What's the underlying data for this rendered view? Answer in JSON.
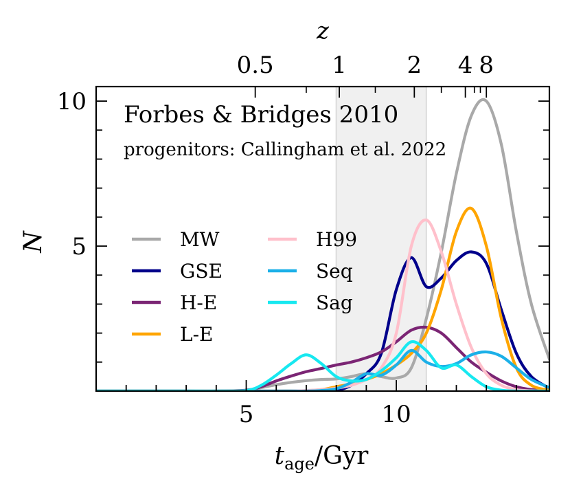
{
  "chart_data": {
    "type": "line",
    "title": "Forbes & Bridges 2010",
    "subtitle": "progenitors: Callingham et al. 2022",
    "xlabel": "t",
    "xlabel_sub": "age",
    "xlabel_unit": "/Gyr",
    "ylabel": "N",
    "top_axis_label": "z",
    "xlim": [
      0,
      15.1
    ],
    "ylim": [
      0,
      10.5
    ],
    "x_ticks": [
      5,
      10
    ],
    "x_tick_labels": [
      "5",
      "10"
    ],
    "y_ticks": [
      5,
      10
    ],
    "y_tick_labels": [
      "5",
      "10"
    ],
    "top_ticks": [
      {
        "label": "0.5",
        "age": 5.3
      },
      {
        "label": "1",
        "age": 8.1
      },
      {
        "label": "2",
        "age": 10.6
      },
      {
        "label": "4",
        "age": 12.3
      },
      {
        "label": "8",
        "age": 13.0
      }
    ],
    "shaded_band": [
      8.0,
      11.0
    ],
    "legend_location": "center-left",
    "x": [
      0,
      1,
      2,
      3,
      4,
      5,
      5.5,
      6,
      6.5,
      7,
      7.5,
      8,
      8.5,
      9,
      9.5,
      10,
      10.5,
      11,
      11.5,
      12,
      12.5,
      13,
      13.5,
      14,
      14.5,
      15.1
    ],
    "series": [
      {
        "name": "MW",
        "color": "#a9a9a9",
        "values": [
          0,
          0,
          0,
          0,
          0,
          0.03,
          0.12,
          0.22,
          0.3,
          0.36,
          0.4,
          0.42,
          0.5,
          0.6,
          0.5,
          0.45,
          0.8,
          2.5,
          4.8,
          7.5,
          9.5,
          10.0,
          8.5,
          5.5,
          3.0,
          1.1
        ]
      },
      {
        "name": "GSE",
        "color": "#00008b",
        "values": [
          0,
          0,
          0,
          0,
          0,
          0,
          0,
          0,
          0,
          0,
          0,
          0.02,
          0.2,
          0.6,
          1.3,
          3.5,
          4.6,
          3.6,
          3.9,
          4.5,
          4.8,
          4.4,
          2.8,
          1.3,
          0.5,
          0.1
        ]
      },
      {
        "name": "H-E",
        "color": "#7b2574",
        "values": [
          0,
          0,
          0,
          0,
          0,
          0.03,
          0.15,
          0.35,
          0.52,
          0.67,
          0.78,
          0.9,
          1.0,
          1.15,
          1.35,
          1.7,
          2.1,
          2.2,
          2.0,
          1.5,
          1.0,
          0.65,
          0.35,
          0.15,
          0.05,
          0.01
        ]
      },
      {
        "name": "L-E",
        "color": "#ffa500",
        "values": [
          0,
          0,
          0,
          0,
          0,
          0,
          0,
          0,
          0,
          0.01,
          0.05,
          0.15,
          0.25,
          0.4,
          0.6,
          0.9,
          1.3,
          2.0,
          3.5,
          5.5,
          6.3,
          5.0,
          2.5,
          0.8,
          0.2,
          0.03
        ]
      },
      {
        "name": "H99",
        "color": "#ffc0cb",
        "values": [
          0,
          0,
          0,
          0,
          0,
          0,
          0,
          0,
          0,
          0.02,
          0.05,
          0.1,
          0.2,
          0.4,
          0.8,
          2.0,
          5.0,
          5.9,
          4.8,
          3.0,
          1.5,
          0.6,
          0.2,
          0.05,
          0.01,
          0
        ]
      },
      {
        "name": "Seq",
        "color": "#1cb0e8",
        "values": [
          0,
          0,
          0,
          0,
          0,
          0,
          0,
          0,
          0,
          0,
          0.02,
          0.08,
          0.3,
          0.6,
          0.55,
          0.9,
          1.4,
          1.0,
          0.85,
          0.95,
          1.25,
          1.35,
          1.2,
          0.8,
          0.4,
          0.12
        ]
      },
      {
        "name": "Sag",
        "color": "#17e8f0",
        "values": [
          0,
          0,
          0,
          0,
          0,
          0.02,
          0.2,
          0.55,
          0.95,
          1.25,
          0.95,
          0.5,
          0.35,
          0.4,
          0.7,
          1.15,
          1.7,
          1.4,
          0.8,
          0.9,
          0.5,
          0.15,
          0.03,
          0,
          0,
          0
        ]
      }
    ]
  }
}
